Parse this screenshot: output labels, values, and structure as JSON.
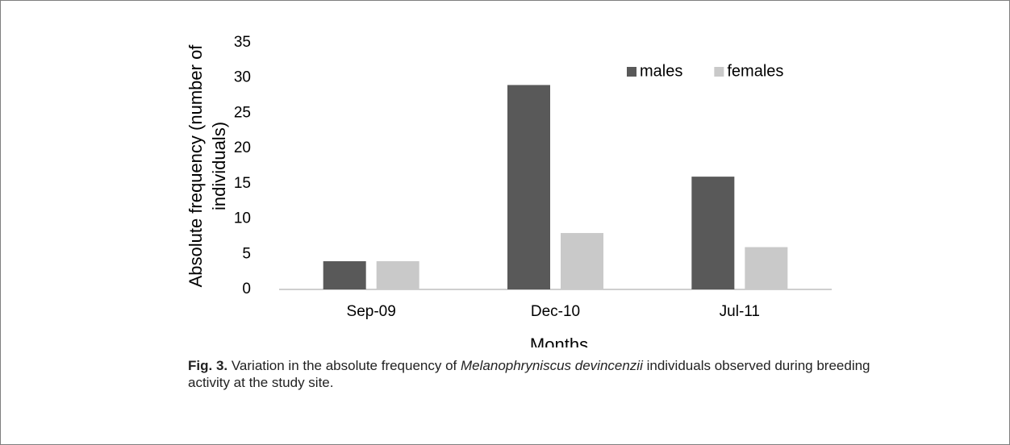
{
  "chart_data": {
    "type": "bar",
    "categories": [
      "Sep-09",
      "Dec-10",
      "Jul-11"
    ],
    "series": [
      {
        "name": "males",
        "color": "#595959",
        "values": [
          4,
          29,
          16
        ]
      },
      {
        "name": "females",
        "color": "#c9c9c9",
        "values": [
          4,
          8,
          6
        ]
      }
    ],
    "ylim": [
      0,
      35
    ],
    "yticks": [
      0,
      5,
      10,
      15,
      20,
      25,
      30,
      35
    ],
    "xlabel": "Months",
    "ylabel": [
      "Absolute frequency (number of",
      "individuals)"
    ],
    "grid": false,
    "legend": "top-right"
  },
  "caption": {
    "label": "Fig. 3.",
    "text_before": "Variation in the absolute frequency of",
    "species": "Melanophryniscus devincenzii",
    "text_after": "individuals observed during breeding activity at the study site."
  }
}
